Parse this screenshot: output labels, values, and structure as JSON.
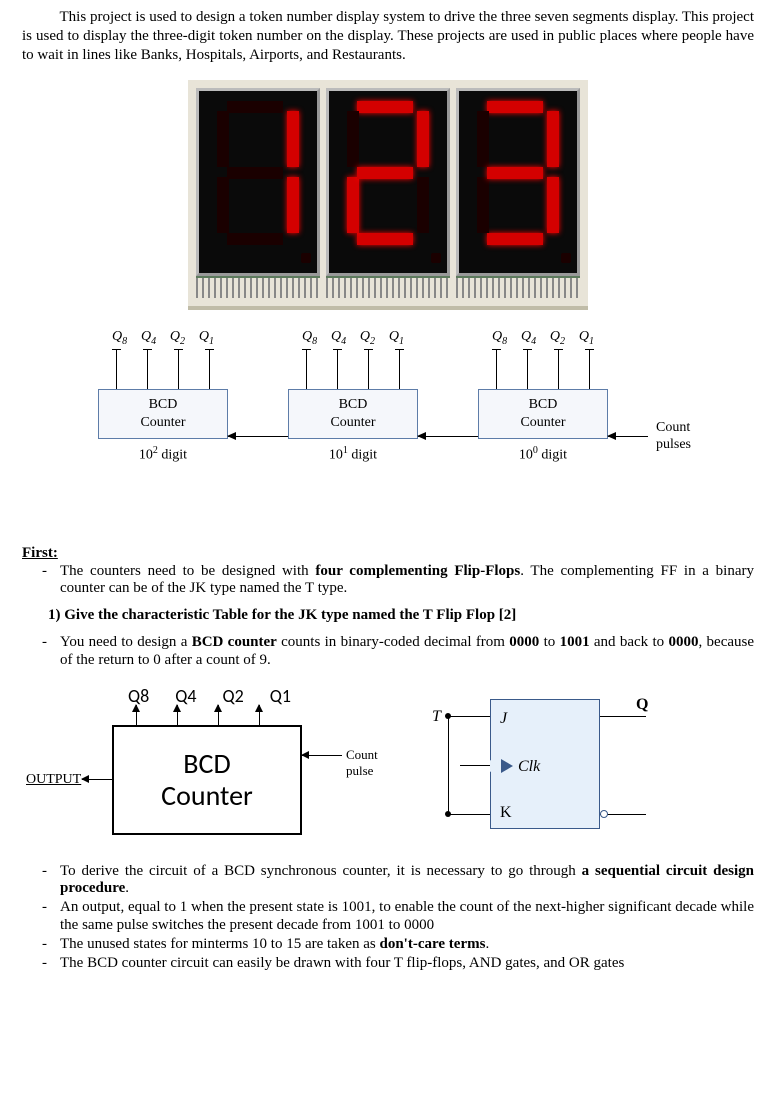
{
  "intro": "This project is used to design a token number display system to drive the three seven segments display. This project is used to display the three-digit token number on the display. These projects are used in public places where people have to wait in lines like Banks, Hospitals, Airports, and Restaurants.",
  "display": {
    "background": "#e8e4d8",
    "digit_bg": "#0a0a0a",
    "segment_on": "#d40000",
    "segment_off": "#1a0000",
    "digits": [
      {
        "value": "1",
        "segments": {
          "a": false,
          "b": true,
          "c": true,
          "d": false,
          "e": false,
          "f": false,
          "g": false
        }
      },
      {
        "value": "2",
        "segments": {
          "a": true,
          "b": true,
          "c": false,
          "d": true,
          "e": true,
          "f": false,
          "g": true
        }
      },
      {
        "value": "3",
        "segments": {
          "a": true,
          "b": true,
          "c": true,
          "d": true,
          "e": false,
          "f": false,
          "g": true
        }
      }
    ]
  },
  "block_diagram": {
    "q_labels": [
      "Q",
      "Q",
      "Q",
      "Q"
    ],
    "q_subs": [
      "8",
      "4",
      "2",
      "1"
    ],
    "box_line1": "BCD",
    "box_line2": "Counter",
    "digit_labels": [
      {
        "base": "10",
        "exp": "2",
        "suffix": " digit"
      },
      {
        "base": "10",
        "exp": "1",
        "suffix": " digit"
      },
      {
        "base": "10",
        "exp": "0",
        "suffix": " digit"
      }
    ],
    "count_pulses_line1": "Count",
    "count_pulses_line2": "pulses",
    "box_border": "#5d7ca8",
    "box_fill": "#f5f7fb"
  },
  "first": {
    "heading": "First:",
    "bullet1a": "The counters need to be designed with ",
    "bullet1b_bold": "four complementing Flip-Flops",
    "bullet1c": ". The complementing FF in a binary counter can be of the JK type named the T type.",
    "q1": "1)  Give the characteristic Table for the JK type named the T Flip Flop  [2]",
    "bullet2a": "You need to design a ",
    "bullet2b_bold": "BCD counter",
    "bullet2c": " counts in binary-coded decimal from ",
    "bullet2d_bold": "0000",
    "bullet2e": " to ",
    "bullet2f_bold": "1001",
    "bullet2g": " and back to ",
    "bullet2h_bold": "0000",
    "bullet2i": ", because of the return to 0 after a count of 9."
  },
  "bcd2": {
    "q_labels": [
      "Q8",
      "Q4",
      "Q2",
      "Q1"
    ],
    "box_line1": "BCD",
    "box_line2": "Counter",
    "output_label": "OUTPUT",
    "count_pulse": "Count pulse"
  },
  "jk": {
    "T": "T",
    "J": "J",
    "K": "K",
    "Clk": "Clk",
    "Q": "Q",
    "box_fill": "#e6f0fa",
    "box_border": "#3a5a8a"
  },
  "notes": {
    "n1a": "To derive the circuit of a BCD synchronous counter, it is necessary to go through ",
    "n1b_bold": "a sequential circuit design procedure",
    "n1c": ".",
    "n2": "An output, equal to 1 when the present state is 1001, to enable the count of the next-higher significant decade while the same pulse switches the present decade from 1001 to 0000",
    "n3a": "The unused states for minterms 10 to 15 are taken as ",
    "n3b_bold": "don't-care terms",
    "n3c": ".",
    "n4": "The BCD counter circuit can easily be drawn with four T flip-flops, AND gates, and OR gates"
  }
}
